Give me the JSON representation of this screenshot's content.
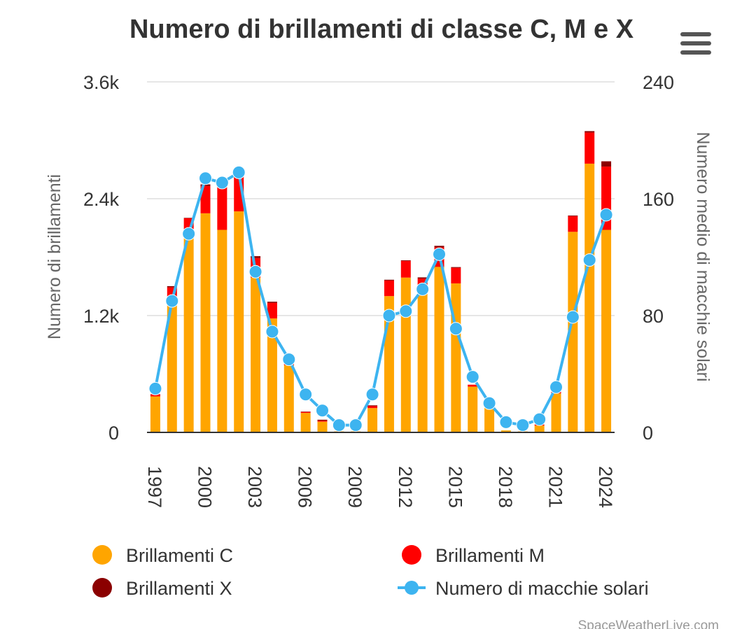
{
  "chart_data": {
    "type": "bar",
    "title": "Numero di brillamenti di classe C, M e X",
    "ylabel": "Numero di brillamenti",
    "y2label": "Numero medio di macchie solari",
    "ylim": [
      0,
      3600
    ],
    "y2lim": [
      0,
      240
    ],
    "y_ticks": [
      "0",
      "1.2k",
      "2.4k",
      "3.6k"
    ],
    "y2_ticks": [
      "0",
      "80",
      "160",
      "240"
    ],
    "x_ticks": [
      "1997",
      "2000",
      "2003",
      "2006",
      "2009",
      "2012",
      "2015",
      "2018",
      "2021",
      "2024"
    ],
    "categories": [
      1997,
      1998,
      1999,
      2000,
      2001,
      2002,
      2003,
      2004,
      2005,
      2006,
      2007,
      2008,
      2009,
      2010,
      2011,
      2012,
      2013,
      2014,
      2015,
      2016,
      2017,
      2018,
      2019,
      2020,
      2021,
      2022,
      2023,
      2024
    ],
    "stacked": true,
    "grid": true,
    "legend_position": "bottom",
    "series": [
      {
        "name": "Brillamenti C",
        "type": "bar",
        "axis": "left",
        "color": "#FFA500",
        "values": [
          370,
          1310,
          2000,
          2250,
          2080,
          2270,
          1590,
          1170,
          690,
          200,
          110,
          10,
          10,
          250,
          1400,
          1590,
          1450,
          1700,
          1530,
          470,
          300,
          20,
          10,
          70,
          400,
          2060,
          2760,
          2080
        ]
      },
      {
        "name": "Brillamenti M",
        "type": "bar",
        "axis": "left",
        "color": "#FF0000",
        "values": [
          20,
          180,
          200,
          280,
          480,
          350,
          200,
          160,
          90,
          10,
          10,
          0,
          0,
          20,
          160,
          170,
          130,
          200,
          160,
          20,
          40,
          0,
          0,
          10,
          30,
          160,
          320,
          650
        ]
      },
      {
        "name": "Brillamenti X",
        "type": "bar",
        "axis": "left",
        "color": "#8B0000",
        "values": [
          3,
          12,
          4,
          17,
          20,
          12,
          20,
          12,
          18,
          4,
          10,
          0,
          0,
          8,
          8,
          7,
          12,
          16,
          8,
          0,
          4,
          0,
          0,
          1,
          2,
          7,
          14,
          54
        ]
      },
      {
        "name": "Numero di macchie solari",
        "type": "line",
        "axis": "right",
        "color": "#3DB4F0",
        "values": [
          30,
          90,
          136,
          174,
          171,
          178,
          110,
          69,
          50,
          26,
          15,
          5,
          5,
          26,
          80,
          83,
          98,
          122,
          71,
          38,
          20,
          7,
          5,
          9,
          31,
          79,
          118,
          149
        ]
      }
    ],
    "credit": "SpaceWeatherLive.com"
  },
  "ui": {
    "menu_icon": "hamburger-menu-icon"
  }
}
